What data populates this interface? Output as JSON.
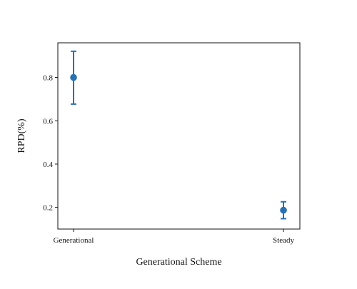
{
  "chart_data": {
    "type": "errorbar",
    "categories": [
      "Generational",
      "Steady"
    ],
    "series": [
      {
        "values": [
          0.8,
          0.187
        ],
        "error_low": [
          0.677,
          0.148
        ],
        "error_high": [
          0.921,
          0.226
        ]
      }
    ],
    "xlabel": "Generational Scheme",
    "ylabel": "RPD(%)",
    "ylim": [
      0.1,
      0.96
    ],
    "yticks": [
      0.2,
      0.4,
      0.6,
      0.8
    ],
    "ytick_labels": [
      "0.2",
      "0.4",
      "0.6",
      "0.8"
    ],
    "grid": false,
    "color": "#2871b3"
  }
}
